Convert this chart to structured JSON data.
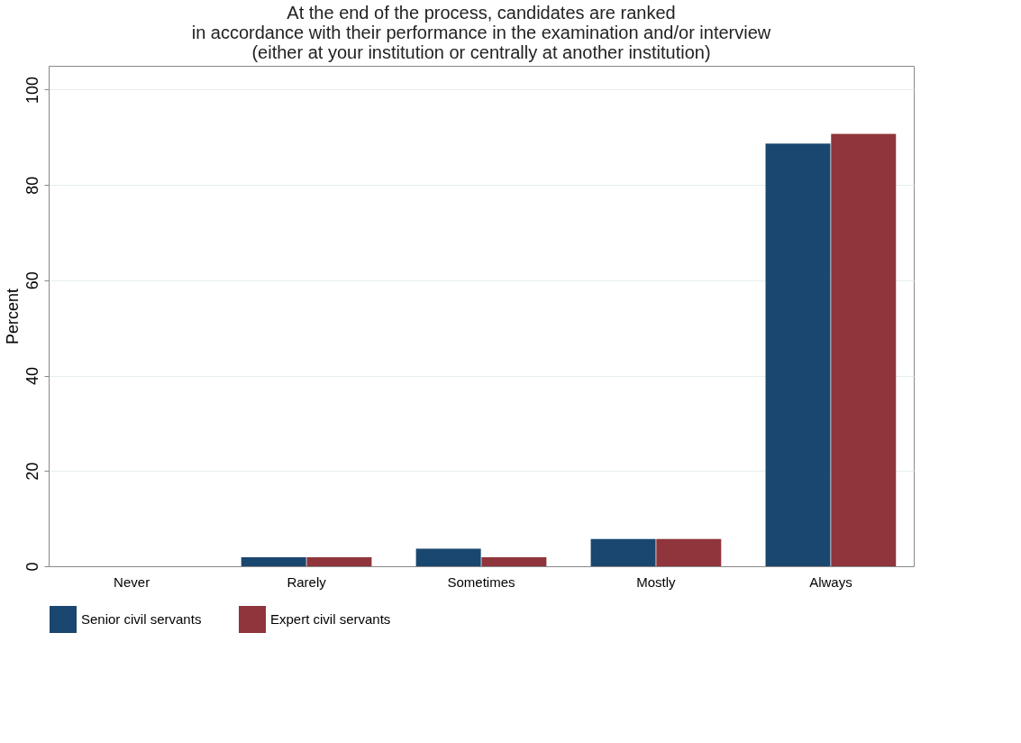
{
  "chart_data": {
    "type": "bar",
    "title": [
      "At the end of the process, candidates are ranked",
      "in accordance with their performance in the examination and/or interview",
      "(either at your institution or centrally at another institution)"
    ],
    "ylabel": "Percent",
    "categories": [
      "Never",
      "Rarely",
      "Sometimes",
      "Mostly",
      "Always"
    ],
    "series": [
      {
        "name": "Senior civil servants",
        "color": "#1a476f",
        "values": [
          0,
          1.9,
          3.7,
          5.7,
          88.7
        ]
      },
      {
        "name": "Expert civil servants",
        "color": "#90353b",
        "values": [
          0,
          1.9,
          1.9,
          5.7,
          90.7
        ]
      }
    ],
    "ylim": [
      0,
      105
    ],
    "yticks": [
      0,
      20,
      40,
      60,
      80,
      100
    ],
    "grid": "y",
    "legend": "bottom"
  }
}
